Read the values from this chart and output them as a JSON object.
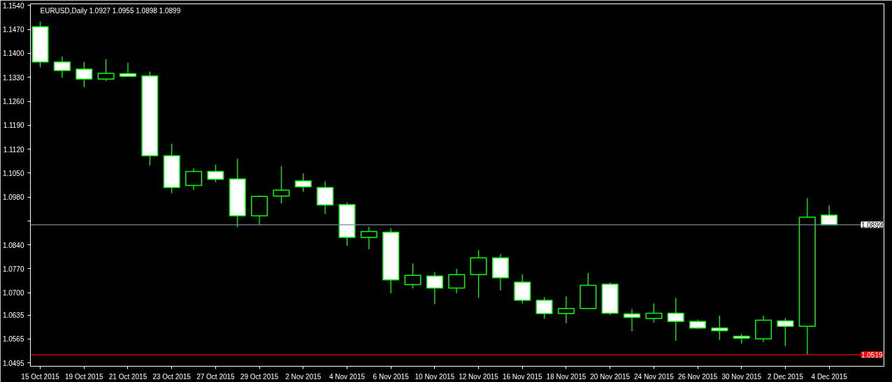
{
  "chart_data": {
    "type": "candlestick",
    "title": "EURUSD,Daily  1.0927 1.0955 1.0898 1.0899",
    "categories": [
      "15 Oct 2015",
      null,
      "19 Oct 2015",
      null,
      "21 Oct 2015",
      null,
      "23 Oct 2015",
      null,
      "27 Oct 2015",
      null,
      "29 Oct 2015",
      null,
      "2 Nov 2015",
      null,
      "4 Nov 2015",
      null,
      "6 Nov 2015",
      null,
      "10 Nov 2015",
      null,
      "12 Nov 2015",
      null,
      "16 Nov 2015",
      null,
      "18 Nov 2015",
      null,
      "20 Nov 2015",
      null,
      "24 Nov 2015",
      null,
      "26 Nov 2015",
      null,
      "30 Nov 2015",
      null,
      "2 Dec 2015",
      null,
      "4 Dec 2015"
    ],
    "ohlc": [
      [
        1.1478,
        1.1493,
        1.1359,
        1.1375
      ],
      [
        1.1375,
        1.1391,
        1.1329,
        1.135
      ],
      [
        1.1354,
        1.1375,
        1.1301,
        1.1325
      ],
      [
        1.1325,
        1.1383,
        1.1319,
        1.1342
      ],
      [
        1.1341,
        1.1373,
        1.1331,
        1.1333
      ],
      [
        1.1334,
        1.1347,
        1.1072,
        1.1101
      ],
      [
        1.1101,
        1.1136,
        1.0991,
        1.1008
      ],
      [
        1.1014,
        1.1064,
        1.1,
        1.1055
      ],
      [
        1.1055,
        1.1074,
        1.1024,
        1.1032
      ],
      [
        1.1033,
        1.1092,
        1.0892,
        1.0925
      ],
      [
        1.0925,
        1.0985,
        1.0898,
        1.0982
      ],
      [
        1.0983,
        1.107,
        1.0961,
        1.1
      ],
      [
        1.1027,
        1.1049,
        1.0995,
        1.101
      ],
      [
        1.1008,
        1.1025,
        1.093,
        1.0957
      ],
      [
        1.0958,
        1.0964,
        1.0837,
        1.0862
      ],
      [
        1.0862,
        1.0893,
        1.0827,
        1.0879
      ],
      [
        1.0877,
        1.0889,
        1.0698,
        1.0738
      ],
      [
        1.0724,
        1.0786,
        1.0713,
        1.0751
      ],
      [
        1.0749,
        1.076,
        1.0667,
        1.0714
      ],
      [
        1.0714,
        1.077,
        1.0699,
        1.0753
      ],
      [
        1.0753,
        1.0825,
        1.0685,
        1.0802
      ],
      [
        1.0802,
        1.0813,
        1.0707,
        1.0744
      ],
      [
        1.0731,
        1.0754,
        1.0669,
        1.0678
      ],
      [
        1.0678,
        1.0687,
        1.0624,
        1.0639
      ],
      [
        1.0639,
        1.0689,
        1.0611,
        1.0654
      ],
      [
        1.0654,
        1.0758,
        1.0654,
        1.0722
      ],
      [
        1.0725,
        1.073,
        1.0635,
        1.064
      ],
      [
        1.0638,
        1.0653,
        1.0587,
        1.0628
      ],
      [
        1.0625,
        1.0669,
        1.0613,
        1.064
      ],
      [
        1.064,
        1.0685,
        1.056,
        1.0616
      ],
      [
        1.0616,
        1.0622,
        1.0593,
        1.0597
      ],
      [
        1.0597,
        1.0633,
        1.0562,
        1.0589
      ],
      [
        1.0573,
        1.058,
        1.0552,
        1.0567
      ],
      [
        1.0565,
        1.0633,
        1.0556,
        1.062
      ],
      [
        1.0618,
        1.0626,
        1.0544,
        1.0602
      ],
      [
        1.0602,
        1.0976,
        1.0519,
        1.0921
      ],
      [
        1.0927,
        1.0955,
        1.0898,
        1.0899
      ]
    ],
    "color": "#00ff00",
    "ylim": [
      1.0485,
      1.1545
    ],
    "yticks": [
      {
        "value": 1.154,
        "label": "1.1540"
      },
      {
        "value": 1.147,
        "label": "1.1470"
      },
      {
        "value": 1.14,
        "label": "1.1400"
      },
      {
        "value": 1.133,
        "label": "1.1330"
      },
      {
        "value": 1.126,
        "label": "1.1260"
      },
      {
        "value": 1.119,
        "label": "1.1190"
      },
      {
        "value": 1.112,
        "label": "1.1120"
      },
      {
        "value": 1.105,
        "label": "1.1050"
      },
      {
        "value": 1.098,
        "label": "1.0980"
      },
      {
        "value": 1.091,
        "label": null
      },
      {
        "value": 1.084,
        "label": "1.0840"
      },
      {
        "value": 1.077,
        "label": "1.0770"
      },
      {
        "value": 1.07,
        "label": "1.0700"
      },
      {
        "value": 1.0635,
        "label": "1.0635"
      },
      {
        "value": 1.0565,
        "label": "1.0565"
      },
      {
        "value": 1.0495,
        "label": "1.0495"
      }
    ],
    "ref_lines": [
      {
        "axis": "y",
        "value": 1.0899,
        "label": "1.0899",
        "color": "#778899"
      },
      {
        "axis": "y",
        "value": 1.0519,
        "label": "1.0519",
        "color": "#ff0000"
      }
    ],
    "grid": false
  }
}
